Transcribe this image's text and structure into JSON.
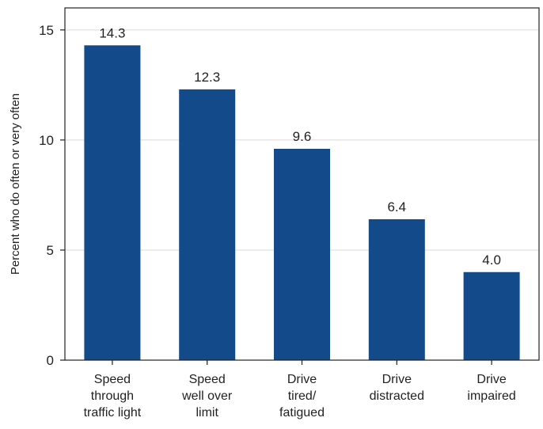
{
  "chart_data": {
    "type": "bar",
    "title": "",
    "xlabel": "",
    "ylabel": "Percent who do often or very often",
    "ylim": [
      0,
      16
    ],
    "yticks": [
      0,
      5,
      10,
      15
    ],
    "grid": true,
    "categories": [
      [
        "Speed",
        "through",
        "traffic light"
      ],
      [
        "Speed",
        "well over",
        "limit"
      ],
      [
        "Drive",
        "tired/",
        "fatigued"
      ],
      [
        "Drive",
        "distracted"
      ],
      [
        "Drive",
        "impaired"
      ]
    ],
    "values": [
      14.3,
      12.3,
      9.6,
      6.4,
      4.0
    ],
    "value_labels": [
      "14.3",
      "12.3",
      "9.6",
      "6.4",
      "4.0"
    ],
    "bar_color": "#134b8a",
    "grid_color": "#d9d9d9"
  }
}
